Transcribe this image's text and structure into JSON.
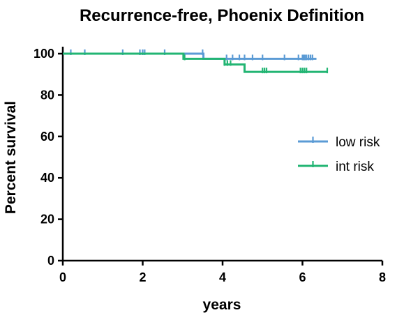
{
  "chart_data": {
    "type": "line",
    "title": "Recurrence-free, Phoenix Definition",
    "xlabel": "years",
    "ylabel": "Percent survival",
    "xlim": [
      0,
      8
    ],
    "ylim": [
      0,
      100
    ],
    "xticks": [
      0,
      2,
      4,
      6,
      8
    ],
    "yticks": [
      0,
      20,
      40,
      60,
      80,
      100
    ],
    "xtick_labels": [
      "0",
      "2",
      "4",
      "6",
      "8"
    ],
    "ytick_labels": [
      "0",
      "20",
      "40",
      "60",
      "80",
      "100"
    ],
    "grid": false,
    "legend_position": "right",
    "series": [
      {
        "name": "low risk",
        "color": "#5b9bd5",
        "steps": [
          {
            "x": 0,
            "y": 100
          },
          {
            "x": 3.52,
            "y": 97.5
          },
          {
            "x": 6.35,
            "y": 97.5
          }
        ],
        "censored": [
          0.2,
          0.55,
          1.5,
          1.93,
          2.0,
          2.05,
          2.55,
          3.5,
          4.1,
          4.25,
          4.42,
          4.55,
          4.75,
          5.0,
          5.55,
          5.9,
          6.0,
          6.03,
          6.06,
          6.1,
          6.15,
          6.2,
          6.25
        ]
      },
      {
        "name": "int risk",
        "color": "#22b573",
        "steps": [
          {
            "x": 0,
            "y": 100
          },
          {
            "x": 3.02,
            "y": 97.5
          },
          {
            "x": 4.05,
            "y": 94.8
          },
          {
            "x": 4.55,
            "y": 91.2
          },
          {
            "x": 6.62,
            "y": 91.2
          }
        ],
        "censored": [
          3.05,
          4.05,
          4.12,
          4.2,
          5.0,
          5.05,
          5.1,
          5.95,
          6.0,
          6.05,
          6.1,
          6.62
        ]
      }
    ]
  }
}
